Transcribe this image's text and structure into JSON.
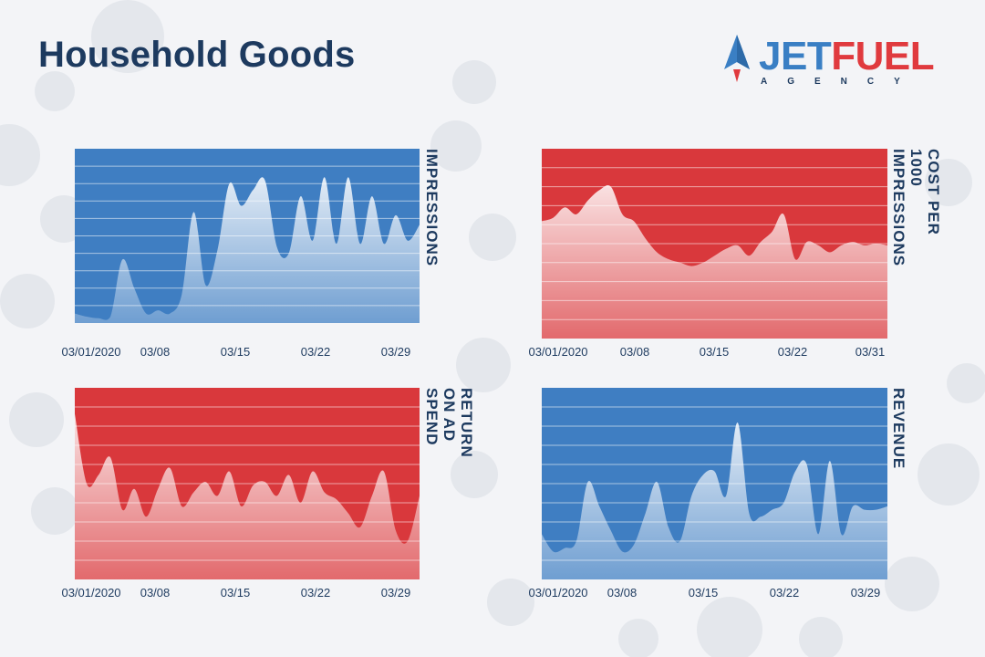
{
  "page": {
    "title": "Household Goods"
  },
  "logo": {
    "word_part1": "JET",
    "word_part2": "FUEL",
    "subtitle": "AGENCY"
  },
  "colors": {
    "blue": "#3f7ec2",
    "red": "#d9383c",
    "navy": "#1d3a5f"
  },
  "chart_data": [
    {
      "type": "area",
      "ylabel": "IMPRESSIONS",
      "xticks": [
        "03/01/2020",
        "03/08",
        "03/15",
        "03/22",
        "03/29"
      ],
      "x": [
        "03/01/2020",
        "03/02",
        "03/03",
        "03/04",
        "03/05",
        "03/06",
        "03/07",
        "03/08",
        "03/09",
        "03/10",
        "03/11",
        "03/12",
        "03/13",
        "03/14",
        "03/15",
        "03/16",
        "03/17",
        "03/18",
        "03/19",
        "03/20",
        "03/21",
        "03/22",
        "03/23",
        "03/24",
        "03/25",
        "03/26",
        "03/27",
        "03/28",
        "03/29",
        "03/30"
      ],
      "values": [
        6,
        4,
        3,
        4,
        40,
        22,
        6,
        8,
        6,
        18,
        70,
        24,
        46,
        88,
        74,
        84,
        90,
        48,
        44,
        80,
        52,
        92,
        50,
        92,
        50,
        80,
        50,
        68,
        52,
        62
      ],
      "ylim": [
        0,
        110
      ],
      "fill_color": "#3f7ec2"
    },
    {
      "type": "area",
      "ylabel": "COST PER 1000\nIMPRESSIONS",
      "xticks": [
        "03/01/2020",
        "03/08",
        "03/15",
        "03/22",
        "03/31"
      ],
      "x": [
        "03/01/2020",
        "03/02",
        "03/03",
        "03/04",
        "03/05",
        "03/06",
        "03/07",
        "03/08",
        "03/09",
        "03/10",
        "03/11",
        "03/12",
        "03/13",
        "03/14",
        "03/15",
        "03/16",
        "03/17",
        "03/18",
        "03/19",
        "03/20",
        "03/21",
        "03/22",
        "03/23",
        "03/24",
        "03/25",
        "03/26",
        "03/27",
        "03/28",
        "03/29",
        "03/30",
        "03/31"
      ],
      "values": [
        68,
        70,
        76,
        72,
        80,
        86,
        88,
        72,
        68,
        58,
        50,
        46,
        44,
        42,
        44,
        48,
        52,
        54,
        48,
        56,
        62,
        72,
        46,
        56,
        54,
        50,
        54,
        56,
        54,
        55,
        54
      ],
      "ylim": [
        0,
        110
      ],
      "fill_color": "#d9383c"
    },
    {
      "type": "area",
      "ylabel": "RETURN ON AD SPEND",
      "xticks": [
        "03/01/2020",
        "03/08",
        "03/15",
        "03/22",
        "03/29"
      ],
      "x": [
        "03/01/2020",
        "03/02",
        "03/03",
        "03/04",
        "03/05",
        "03/06",
        "03/07",
        "03/08",
        "03/09",
        "03/10",
        "03/11",
        "03/12",
        "03/13",
        "03/14",
        "03/15",
        "03/16",
        "03/17",
        "03/18",
        "03/19",
        "03/20",
        "03/21",
        "03/22",
        "03/23",
        "03/24",
        "03/25",
        "03/26",
        "03/27",
        "03/28",
        "03/29",
        "03/30"
      ],
      "values": [
        95,
        55,
        60,
        70,
        40,
        52,
        36,
        52,
        64,
        42,
        50,
        56,
        48,
        62,
        42,
        54,
        56,
        48,
        60,
        44,
        62,
        50,
        46,
        38,
        30,
        48,
        62,
        28,
        22,
        48
      ],
      "ylim": [
        0,
        110
      ],
      "fill_color": "#d9383c"
    },
    {
      "type": "area",
      "ylabel": "REVENUE",
      "xticks": [
        "03/01/2020",
        "03/08",
        "03/15",
        "03/22",
        "03/29"
      ],
      "x": [
        "03/01/2020",
        "03/02",
        "03/03",
        "03/04",
        "03/05",
        "03/06",
        "03/07",
        "03/08",
        "03/09",
        "03/10",
        "03/11",
        "03/12",
        "03/13",
        "03/14",
        "03/15",
        "03/16",
        "03/17",
        "03/18",
        "03/19",
        "03/20",
        "03/21",
        "03/22",
        "03/23",
        "03/24",
        "03/25",
        "03/26",
        "03/27",
        "03/28",
        "03/29",
        "03/30",
        "03/31"
      ],
      "values": [
        26,
        16,
        18,
        22,
        56,
        42,
        28,
        16,
        20,
        38,
        56,
        30,
        22,
        48,
        60,
        62,
        48,
        90,
        38,
        36,
        40,
        44,
        62,
        66,
        26,
        68,
        26,
        42,
        40,
        40,
        42
      ],
      "ylim": [
        0,
        110
      ],
      "fill_color": "#3f7ec2"
    }
  ]
}
